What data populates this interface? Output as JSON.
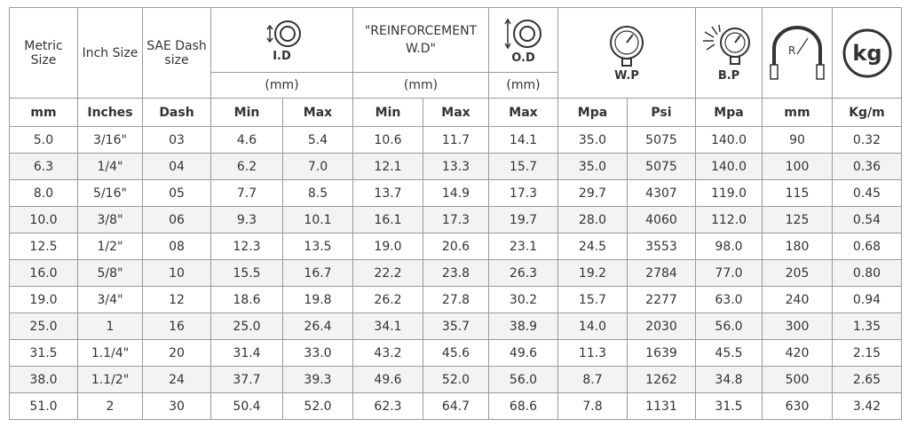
{
  "header": {
    "metric": "Metric Size",
    "inch": "Inch Size",
    "sae": "SAE Dash size",
    "id": "I.D",
    "id_unit": "(mm)",
    "wd": "\"REINFORCEMENT W.D\"",
    "wd_unit": "(mm)",
    "od": "O.D",
    "od_unit": "(mm)",
    "wp": "W.P",
    "bp": "B.P",
    "bend_icon": "R",
    "weight_icon": "kg"
  },
  "units": [
    "mm",
    "Inches",
    "Dash",
    "Min",
    "Max",
    "Min",
    "Max",
    "Max",
    "Mpa",
    "Psi",
    "Mpa",
    "mm",
    "Kg/m"
  ],
  "rows": [
    [
      "5.0",
      "3/16\"",
      "03",
      "4.6",
      "5.4",
      "10.6",
      "11.7",
      "14.1",
      "35.0",
      "5075",
      "140.0",
      "90",
      "0.32"
    ],
    [
      "6.3",
      "1/4\"",
      "04",
      "6.2",
      "7.0",
      "12.1",
      "13.3",
      "15.7",
      "35.0",
      "5075",
      "140.0",
      "100",
      "0.36"
    ],
    [
      "8.0",
      "5/16\"",
      "05",
      "7.7",
      "8.5",
      "13.7",
      "14.9",
      "17.3",
      "29.7",
      "4307",
      "119.0",
      "115",
      "0.45"
    ],
    [
      "10.0",
      "3/8\"",
      "06",
      "9.3",
      "10.1",
      "16.1",
      "17.3",
      "19.7",
      "28.0",
      "4060",
      "112.0",
      "125",
      "0.54"
    ],
    [
      "12.5",
      "1/2\"",
      "08",
      "12.3",
      "13.5",
      "19.0",
      "20.6",
      "23.1",
      "24.5",
      "3553",
      "98.0",
      "180",
      "0.68"
    ],
    [
      "16.0",
      "5/8\"",
      "10",
      "15.5",
      "16.7",
      "22.2",
      "23.8",
      "26.3",
      "19.2",
      "2784",
      "77.0",
      "205",
      "0.80"
    ],
    [
      "19.0",
      "3/4\"",
      "12",
      "18.6",
      "19.8",
      "26.2",
      "27.8",
      "30.2",
      "15.7",
      "2277",
      "63.0",
      "240",
      "0.94"
    ],
    [
      "25.0",
      "1",
      "16",
      "25.0",
      "26.4",
      "34.1",
      "35.7",
      "38.9",
      "14.0",
      "2030",
      "56.0",
      "300",
      "1.35"
    ],
    [
      "31.5",
      "1.1/4\"",
      "20",
      "31.4",
      "33.0",
      "43.2",
      "45.6",
      "49.6",
      "11.3",
      "1639",
      "45.5",
      "420",
      "2.15"
    ],
    [
      "38.0",
      "1.1/2\"",
      "24",
      "37.7",
      "39.3",
      "49.6",
      "52.0",
      "56.0",
      "8.7",
      "1262",
      "34.8",
      "500",
      "2.65"
    ],
    [
      "51.0",
      "2",
      "30",
      "50.4",
      "52.0",
      "62.3",
      "64.7",
      "68.6",
      "7.8",
      "1131",
      "31.5",
      "630",
      "3.42"
    ]
  ]
}
